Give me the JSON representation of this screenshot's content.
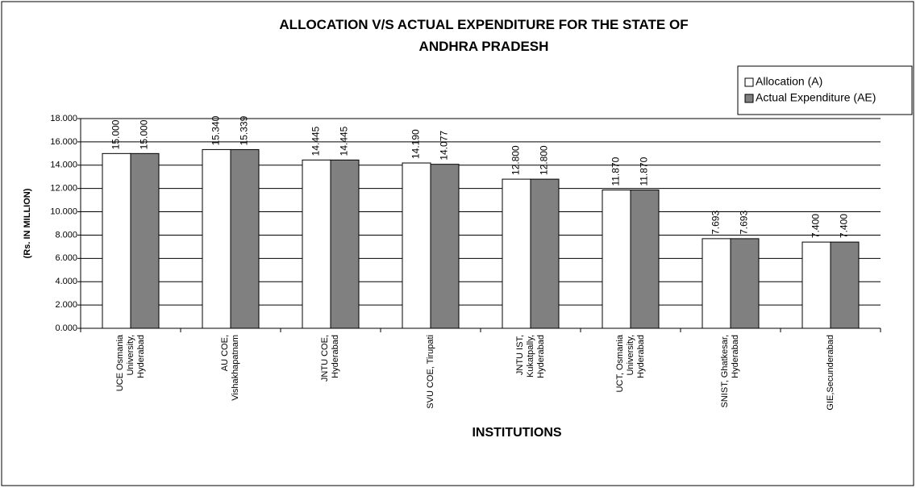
{
  "chart_data": {
    "type": "bar",
    "title": "ALLOCATION V/S ACTUAL EXPENDITURE FOR THE STATE OF ANDHRA PRADESH",
    "x_label": "INSTITUTIONS",
    "y_label": "(Rs. IN MILLION)",
    "categories": [
      "UCE Osmania University, Hyderabad",
      "AU COE, Vishakhapatnam",
      "JNTU COE, Hyderabad",
      "SVU COE, Tirupati",
      "JNTU IST, Kukatpally, Hyderabad",
      "UCT, Osmania University, Hyderabad",
      "SNIST, Ghatkesar, Hyderabad",
      "GIE,Secunderabad"
    ],
    "series": [
      {
        "name": "Allocation (A)",
        "color": "#ffffff",
        "values": [
          15.0,
          15.34,
          14.445,
          14.19,
          12.8,
          11.87,
          7.693,
          7.4
        ],
        "value_labels": [
          "15.000",
          "15.340",
          "14.445",
          "14.190",
          "12.800",
          "11.870",
          "7.693",
          "7.400"
        ]
      },
      {
        "name": "Actual Expenditure (AE)",
        "color": "#808080",
        "values": [
          15.0,
          15.339,
          14.445,
          14.077,
          12.8,
          11.87,
          7.693,
          7.4
        ],
        "value_labels": [
          "15.000",
          "15.339",
          "14.445",
          "14.077",
          "12.800",
          "11.870",
          "7.693",
          "7.400"
        ]
      }
    ],
    "ylim": [
      0,
      18
    ],
    "yticks": [
      {
        "value": 0,
        "label": "0.000"
      },
      {
        "value": 2,
        "label": "2.000"
      },
      {
        "value": 4,
        "label": "4.000"
      },
      {
        "value": 6,
        "label": "6.000"
      },
      {
        "value": 8,
        "label": "8.000"
      },
      {
        "value": 10,
        "label": "10.000"
      },
      {
        "value": 12,
        "label": "12.000"
      },
      {
        "value": 14,
        "label": "14.000"
      },
      {
        "value": 16,
        "label": "16.000"
      },
      {
        "value": 18,
        "label": "18.000"
      }
    ],
    "grid": true,
    "legend": "top-right"
  }
}
